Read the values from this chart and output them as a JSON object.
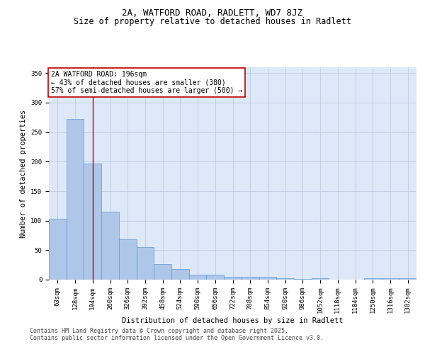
{
  "title1": "2A, WATFORD ROAD, RADLETT, WD7 8JZ",
  "title2": "Size of property relative to detached houses in Radlett",
  "xlabel": "Distribution of detached houses by size in Radlett",
  "ylabel": "Number of detached properties",
  "categories": [
    "63sqm",
    "128sqm",
    "194sqm",
    "260sqm",
    "326sqm",
    "392sqm",
    "458sqm",
    "524sqm",
    "590sqm",
    "656sqm",
    "722sqm",
    "788sqm",
    "854sqm",
    "920sqm",
    "986sqm",
    "1052sqm",
    "1118sqm",
    "1184sqm",
    "1250sqm",
    "1316sqm",
    "1382sqm"
  ],
  "values": [
    103,
    272,
    197,
    115,
    68,
    55,
    26,
    18,
    9,
    8,
    5,
    5,
    5,
    3,
    1,
    2,
    0,
    0,
    3,
    3,
    2
  ],
  "bar_color": "#aec6e8",
  "bar_edge_color": "#5b9bd5",
  "vline_x": 2.0,
  "vline_color": "#c00000",
  "annotation_box_text": "2A WATFORD ROAD: 196sqm\n← 43% of detached houses are smaller (380)\n57% of semi-detached houses are larger (500) →",
  "annotation_box_color": "#c00000",
  "annotation_text_color": "#000000",
  "ylim": [
    0,
    360
  ],
  "yticks": [
    0,
    50,
    100,
    150,
    200,
    250,
    300,
    350
  ],
  "background_color": "#dde8f8",
  "footer_text": "Contains HM Land Registry data © Crown copyright and database right 2025.\nContains public sector information licensed under the Open Government Licence v3.0.",
  "title_fontsize": 9,
  "subtitle_fontsize": 8.5,
  "axis_label_fontsize": 7.5,
  "tick_fontsize": 6.5,
  "annotation_fontsize": 7,
  "footer_fontsize": 6
}
